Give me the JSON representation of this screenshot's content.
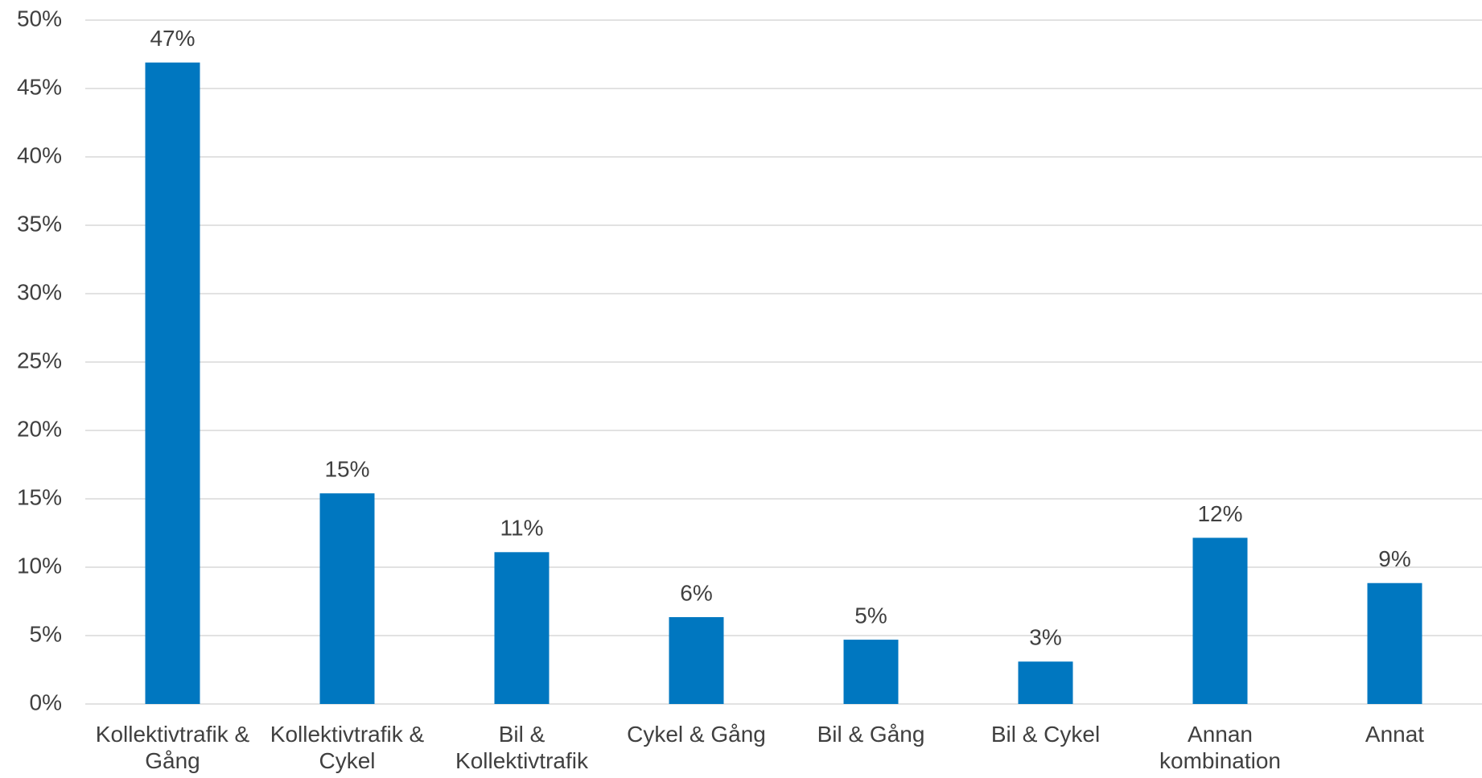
{
  "chart_data": {
    "type": "bar",
    "categories": [
      "Kollektivtrafik & Gång",
      "Kollektivtrafik & Cykel",
      "Bil & Kollektivtrafik",
      "Cykel & Gång",
      "Bil & Gång",
      "Bil & Cykel",
      "Annan kombination",
      "Annat"
    ],
    "values": [
      46.9,
      15.4,
      11.1,
      6.35,
      4.7,
      3.1,
      12.15,
      8.84
    ],
    "value_labels": [
      "47%",
      "15%",
      "11%",
      "6%",
      "5%",
      "3%",
      "12%",
      "9%"
    ],
    "color": "#0077c0",
    "ylim": [
      0,
      50
    ],
    "yticks": [
      {
        "value": 0,
        "label": "0%"
      },
      {
        "value": 5,
        "label": "5%"
      },
      {
        "value": 10,
        "label": "10%"
      },
      {
        "value": 15,
        "label": "15%"
      },
      {
        "value": 20,
        "label": "20%"
      },
      {
        "value": 25,
        "label": "25%"
      },
      {
        "value": 30,
        "label": "30%"
      },
      {
        "value": 35,
        "label": "35%"
      },
      {
        "value": 40,
        "label": "40%"
      },
      {
        "value": 45,
        "label": "45%"
      },
      {
        "value": 50,
        "label": "50%"
      }
    ],
    "grid": true
  }
}
